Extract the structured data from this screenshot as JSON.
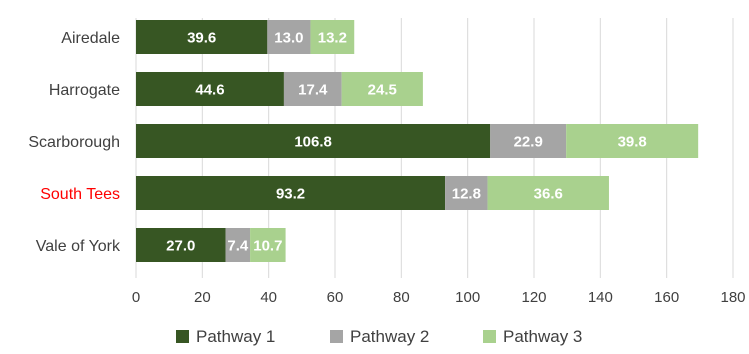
{
  "chart_data": {
    "type": "bar",
    "orientation": "horizontal",
    "stacked": true,
    "categories": [
      "Airedale",
      "Harrogate",
      "Scarborough",
      "South Tees",
      "Vale of York"
    ],
    "category_colors": [
      "#404040",
      "#404040",
      "#404040",
      "#ff0000",
      "#404040"
    ],
    "series": [
      {
        "name": "Pathway 1",
        "color": "#375623",
        "values": [
          39.6,
          44.6,
          106.8,
          93.2,
          27.0
        ]
      },
      {
        "name": "Pathway 2",
        "color": "#a5a5a5",
        "values": [
          13.0,
          17.4,
          22.9,
          12.8,
          7.4
        ]
      },
      {
        "name": "Pathway 3",
        "color": "#a9d18e",
        "values": [
          13.2,
          24.5,
          39.8,
          36.6,
          10.7
        ]
      }
    ],
    "data_labels": [
      [
        "39.6",
        "44.6",
        "106.8",
        "93.2",
        "27.0"
      ],
      [
        "13.0",
        "17.4",
        "22.9",
        "12.8",
        "7.4"
      ],
      [
        "13.2",
        "24.5",
        "39.8",
        "36.6",
        "10.7"
      ]
    ],
    "xlim": [
      0,
      180
    ],
    "xticks": [
      0,
      20,
      40,
      60,
      80,
      100,
      120,
      140,
      160,
      180
    ],
    "xtick_labels": [
      "0",
      "20",
      "40",
      "60",
      "80",
      "100",
      "120",
      "140",
      "160",
      "180"
    ],
    "grid": true,
    "legend_position": "bottom",
    "title": "",
    "xlabel": "",
    "ylabel": ""
  }
}
